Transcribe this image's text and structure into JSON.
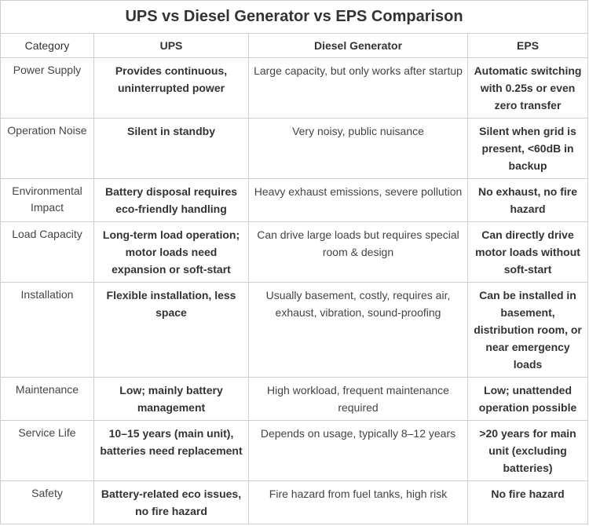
{
  "title": "UPS vs Diesel Generator vs EPS Comparison",
  "headers": {
    "category": "Category",
    "ups": "UPS",
    "diesel": "Diesel Generator",
    "eps": "EPS"
  },
  "rows": [
    {
      "category": "Power Supply",
      "ups": "Provides continuous, uninterrupted power",
      "diesel": "Large capacity, but only works after startup",
      "eps": "Automatic switching with 0.25s or even zero transfer"
    },
    {
      "category": "Operation Noise",
      "ups": "Silent in standby",
      "diesel": "Very noisy, public nuisance",
      "eps": "Silent when grid is present, <60dB in backup"
    },
    {
      "category": "Environmental Impact",
      "ups": "Battery disposal requires eco-friendly handling",
      "diesel": "Heavy exhaust emissions, severe pollution",
      "eps": "No exhaust, no fire hazard"
    },
    {
      "category": "Load Capacity",
      "ups": "Long-term load operation; motor loads need expansion or soft-start",
      "diesel": "Can drive large loads but requires special room & design",
      "eps": "Can directly drive motor loads without soft-start"
    },
    {
      "category": "Installation",
      "ups": "Flexible installation, less space",
      "diesel": "Usually basement, costly, requires air, exhaust, vibration, sound-proofing",
      "eps": "Can be installed in basement, distribution room, or near emergency loads"
    },
    {
      "category": "Maintenance",
      "ups": "Low; mainly battery management",
      "diesel": "High workload, frequent maintenance required",
      "eps": "Low; unattended operation possible"
    },
    {
      "category": "Service Life",
      "ups": "10–15 years (main unit), batteries need replacement",
      "diesel": "Depends on usage, typically 8–12 years",
      "eps": ">20 years for main unit (excluding batteries)"
    },
    {
      "category": "Safety",
      "ups": "Battery-related eco issues, no fire hazard",
      "diesel": "Fire hazard from fuel tanks, high risk",
      "eps": "No fire hazard"
    }
  ]
}
